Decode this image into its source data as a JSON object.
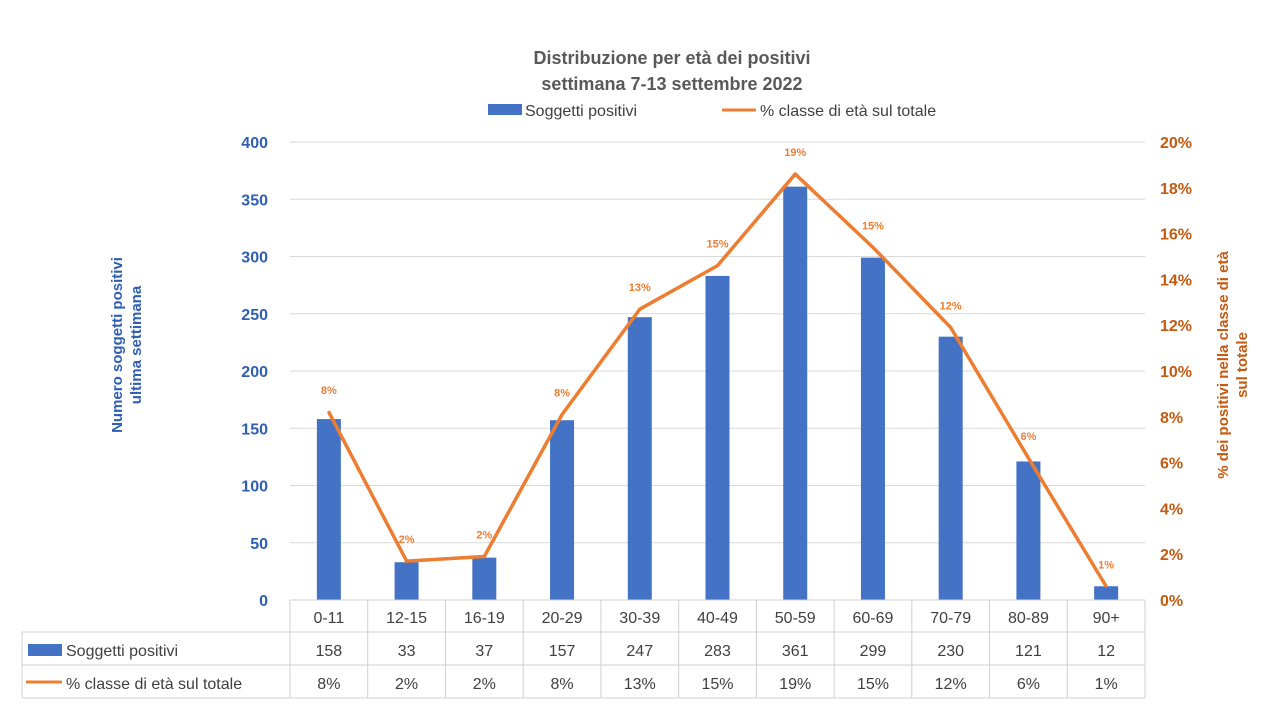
{
  "chart_data": {
    "type": "bar+line",
    "title": "Distribuzione per età dei positivi",
    "subtitle": "settimana 7-13 settembre 2022",
    "categories": [
      "0-11",
      "12-15",
      "16-19",
      "20-29",
      "30-39",
      "40-49",
      "50-59",
      "60-69",
      "70-79",
      "80-89",
      "90+"
    ],
    "series": [
      {
        "name": "Soggetti positivi",
        "type": "bar",
        "axis": "left",
        "color": "#4472C4",
        "values": [
          158,
          33,
          37,
          157,
          247,
          283,
          361,
          299,
          230,
          121,
          12
        ]
      },
      {
        "name": "% classe di età sul totale",
        "type": "line",
        "axis": "right",
        "color": "#ED7D31",
        "values": [
          8.2,
          1.7,
          1.9,
          8.1,
          12.7,
          14.6,
          18.6,
          15.4,
          11.9,
          6.2,
          0.6
        ],
        "labels": [
          "8%",
          "2%",
          "2%",
          "8%",
          "13%",
          "15%",
          "19%",
          "15%",
          "12%",
          "6%",
          "1%"
        ]
      }
    ],
    "ylabel_left": "Numero soggetti positivi ultima settimana",
    "ylabel_left_lines": [
      "Numero soggetti positivi",
      "ultima settimana"
    ],
    "ylabel_right_lines": [
      "% dei positivi nella classe di età",
      "sul totale"
    ],
    "ylim_left": [
      0,
      400
    ],
    "yticks_left": [
      "0",
      "50",
      "100",
      "150",
      "200",
      "250",
      "300",
      "350",
      "400"
    ],
    "ylim_right": [
      0,
      20
    ],
    "yticks_right": [
      "0%",
      "2%",
      "4%",
      "6%",
      "8%",
      "10%",
      "12%",
      "14%",
      "16%",
      "18%",
      "20%"
    ],
    "legend": [
      "Soggetti positivi",
      "% classe di età sul totale"
    ],
    "legend_position": "top",
    "grid": true,
    "data_table": true
  }
}
